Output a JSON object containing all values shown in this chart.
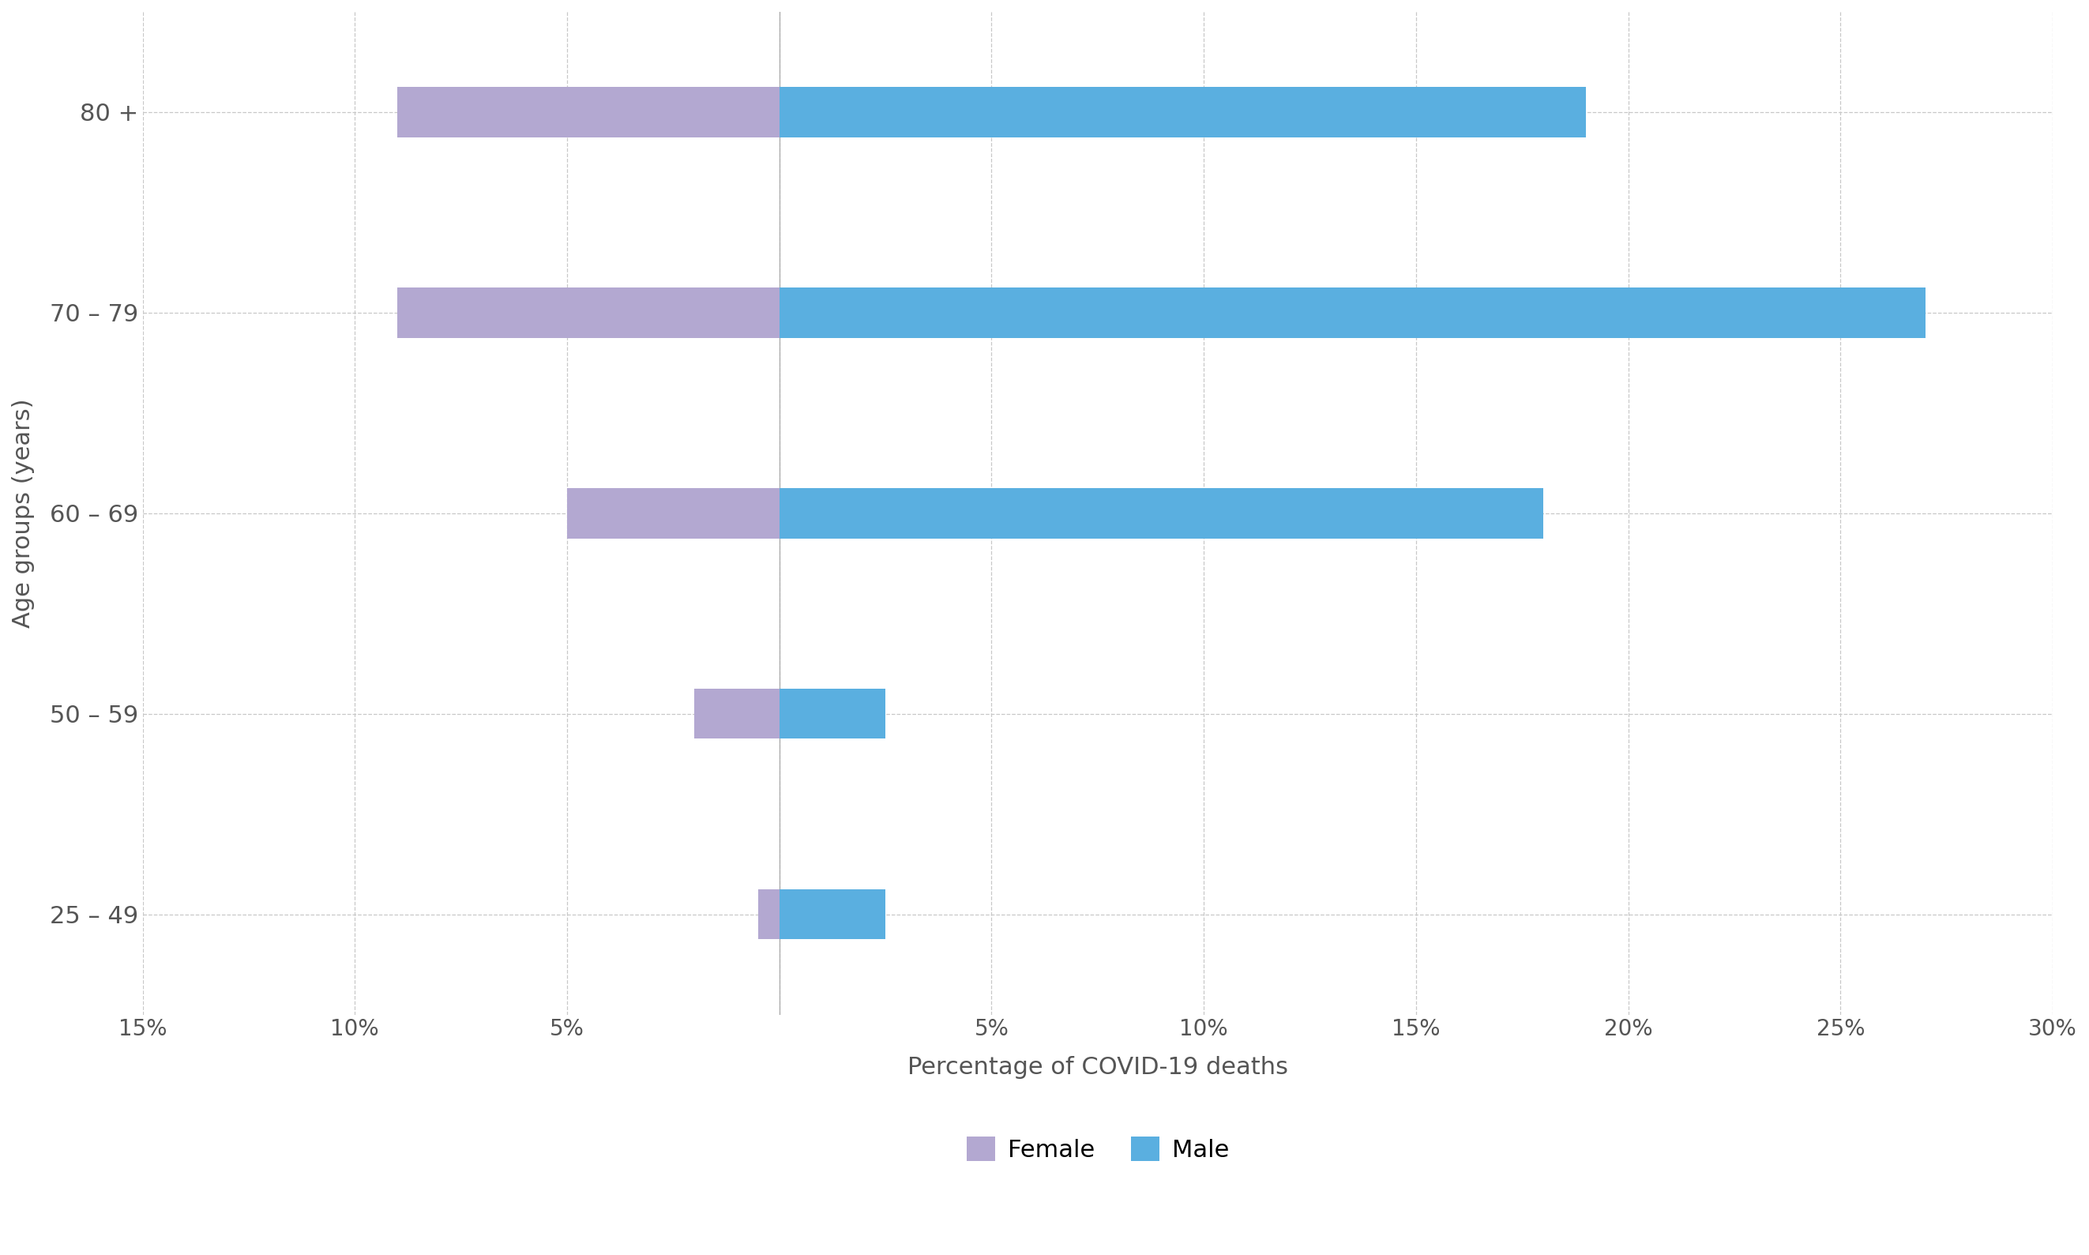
{
  "age_groups": [
    "25 – 49",
    "50 – 59",
    "60 – 69",
    "70 – 79",
    "80 +"
  ],
  "female": [
    0.5,
    2.0,
    5.0,
    9.0,
    9.0
  ],
  "male": [
    2.5,
    2.5,
    18.0,
    27.0,
    19.0
  ],
  "female_color": "#b3a8d1",
  "male_color": "#5aafe0",
  "xlabel": "Percentage of COVID-19 deaths",
  "ylabel": "Age groups (years)",
  "xlim_left": -15,
  "xlim_right": 30,
  "xticks": [
    -15,
    -10,
    -5,
    0,
    5,
    10,
    15,
    20,
    25,
    30
  ],
  "background_color": "#ffffff",
  "grid_color": "#c8c8c8",
  "bar_height": 0.35,
  "legend_female": "Female",
  "legend_male": "Male",
  "ytick_fontsize": 22,
  "xtick_fontsize": 20,
  "label_fontsize": 22,
  "legend_fontsize": 22
}
